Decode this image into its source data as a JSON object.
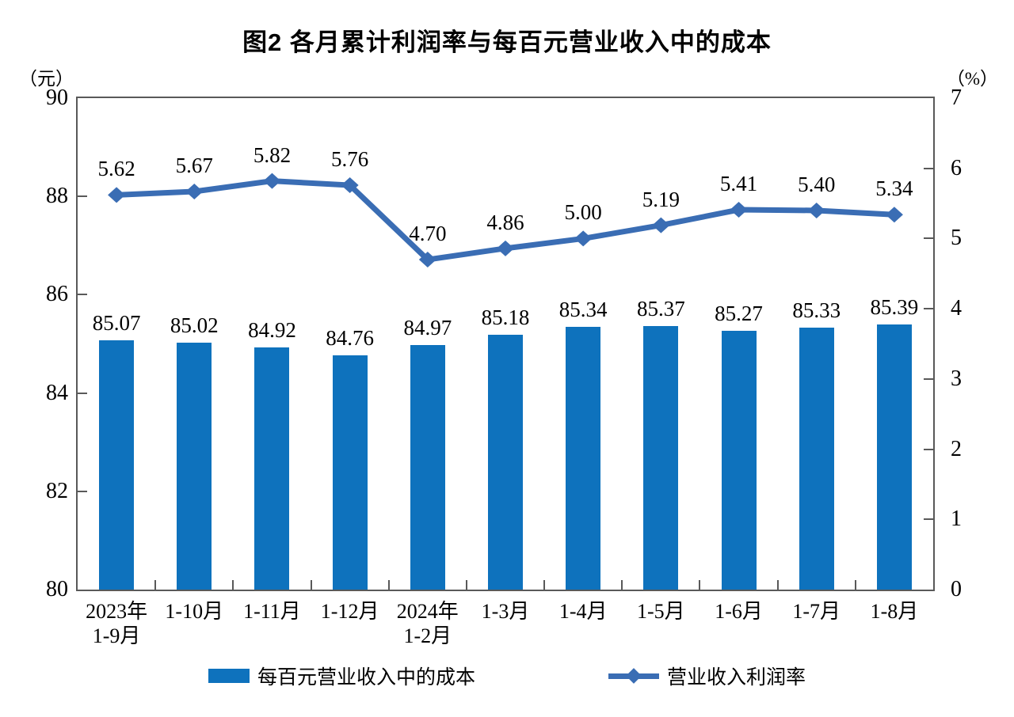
{
  "title": "图2 各月累计利润率与每百元营业收入中的成本",
  "colors": {
    "bar": "#0E72BD",
    "line": "#3A6DB4",
    "axis": "#595959",
    "text": "#000000"
  },
  "chart_data": {
    "type": "bar",
    "combo": "bar+line, dual axis",
    "title": "图2 各月累计利润率与每百元营业收入中的成本",
    "categories": [
      "2023年\n1-9月",
      "1-10月",
      "1-11月",
      "1-12月",
      "2024年\n1-2月",
      "1-3月",
      "1-4月",
      "1-5月",
      "1-6月",
      "1-7月",
      "1-8月"
    ],
    "series": [
      {
        "name": "每百元营业收入中的成本",
        "type": "bar",
        "axis": "left",
        "values": [
          85.07,
          85.02,
          84.92,
          84.76,
          84.97,
          85.18,
          85.34,
          85.37,
          85.27,
          85.33,
          85.39
        ]
      },
      {
        "name": "营业收入利润率",
        "type": "line",
        "axis": "right",
        "values": [
          5.62,
          5.67,
          5.82,
          5.76,
          4.7,
          4.86,
          5.0,
          5.19,
          5.41,
          5.4,
          5.34
        ]
      }
    ],
    "left_axis": {
      "label": "（元）",
      "min": 80,
      "max": 90,
      "ticks": [
        90,
        88,
        86,
        84,
        82,
        80
      ]
    },
    "right_axis": {
      "label": "（%）",
      "min": 0,
      "max": 7,
      "ticks": [
        7,
        6,
        5,
        4,
        3,
        2,
        1,
        0
      ]
    },
    "grid": false,
    "data_labels": true,
    "label_decimals": 2,
    "legend_position": "bottom"
  }
}
